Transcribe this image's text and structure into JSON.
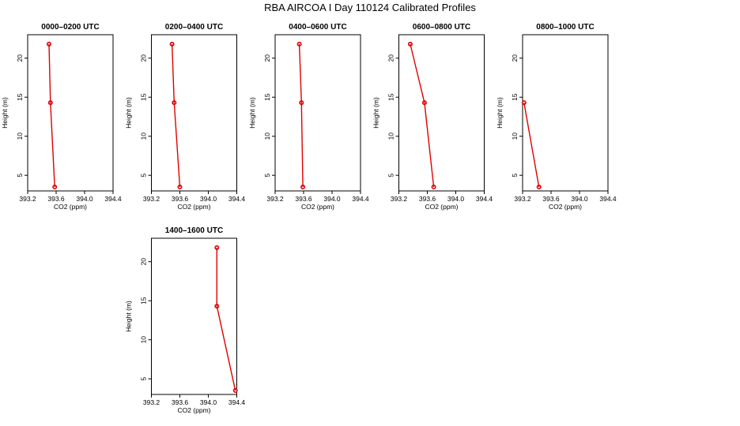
{
  "figure_title": "RBA AIRCOA I  Day 110124  Calibrated Profiles",
  "colors": {
    "series": "#e00000",
    "axes": "#000000",
    "background": "#ffffff"
  },
  "chart_data": [
    {
      "type": "line",
      "title": "0000–0200 UTC",
      "xlabel": "CO2 (ppm)",
      "ylabel": "Height (m)",
      "xlim": [
        393.2,
        394.4
      ],
      "ylim": [
        3,
        23
      ],
      "grid": false,
      "xticks": [
        "393.2",
        "393.6",
        "394.0",
        "394.4"
      ],
      "yticks": [
        "5",
        "10",
        "15",
        "20"
      ],
      "series": [
        {
          "x": [
            393.58,
            393.52,
            393.5
          ],
          "y": [
            3.5,
            14.3,
            21.8
          ]
        }
      ]
    },
    {
      "type": "line",
      "title": "0200–0400 UTC",
      "xlabel": "CO2 (ppm)",
      "ylabel": "Height (m)",
      "xlim": [
        393.2,
        394.4
      ],
      "ylim": [
        3,
        23
      ],
      "grid": false,
      "xticks": [
        "393.2",
        "393.6",
        "394.0",
        "394.4"
      ],
      "yticks": [
        "5",
        "10",
        "15",
        "20"
      ],
      "series": [
        {
          "x": [
            393.6,
            393.52,
            393.49
          ],
          "y": [
            3.5,
            14.3,
            21.8
          ]
        }
      ]
    },
    {
      "type": "line",
      "title": "0400–0600 UTC",
      "xlabel": "CO2 (ppm)",
      "ylabel": "Height (m)",
      "xlim": [
        393.2,
        394.4
      ],
      "ylim": [
        3,
        23
      ],
      "grid": false,
      "xticks": [
        "393.2",
        "393.6",
        "394.0",
        "394.4"
      ],
      "yticks": [
        "5",
        "10",
        "15",
        "20"
      ],
      "series": [
        {
          "x": [
            393.59,
            393.57,
            393.54
          ],
          "y": [
            3.5,
            14.3,
            21.8
          ]
        }
      ]
    },
    {
      "type": "line",
      "title": "0600–0800 UTC",
      "xlabel": "CO2 (ppm)",
      "ylabel": "Height (m)",
      "xlim": [
        393.2,
        394.4
      ],
      "ylim": [
        3,
        23
      ],
      "grid": false,
      "xticks": [
        "393.2",
        "393.6",
        "394.0",
        "394.4"
      ],
      "yticks": [
        "5",
        "10",
        "15",
        "20"
      ],
      "series": [
        {
          "x": [
            393.69,
            393.56,
            393.36
          ],
          "y": [
            3.5,
            14.3,
            21.8
          ]
        }
      ]
    },
    {
      "type": "line",
      "title": "0800–1000 UTC",
      "xlabel": "CO2 (ppm)",
      "ylabel": "Height (m)",
      "xlim": [
        393.2,
        394.4
      ],
      "ylim": [
        3,
        23
      ],
      "grid": false,
      "xticks": [
        "393.2",
        "393.6",
        "394.0",
        "394.4"
      ],
      "yticks": [
        "5",
        "10",
        "15",
        "20"
      ],
      "series": [
        {
          "x": [
            393.43,
            393.22
          ],
          "y": [
            3.5,
            14.3
          ]
        }
      ]
    },
    {
      "type": "line",
      "title": "1400–1600 UTC",
      "xlabel": "CO2 (ppm)",
      "ylabel": "Height (m)",
      "xlim": [
        393.2,
        394.4
      ],
      "ylim": [
        3,
        23
      ],
      "grid": false,
      "xticks": [
        "393.2",
        "393.6",
        "394.0",
        "394.4"
      ],
      "yticks": [
        "5",
        "10",
        "15",
        "20"
      ],
      "series": [
        {
          "x": [
            394.38,
            394.12,
            394.12
          ],
          "y": [
            3.5,
            14.3,
            21.8
          ]
        }
      ]
    }
  ]
}
